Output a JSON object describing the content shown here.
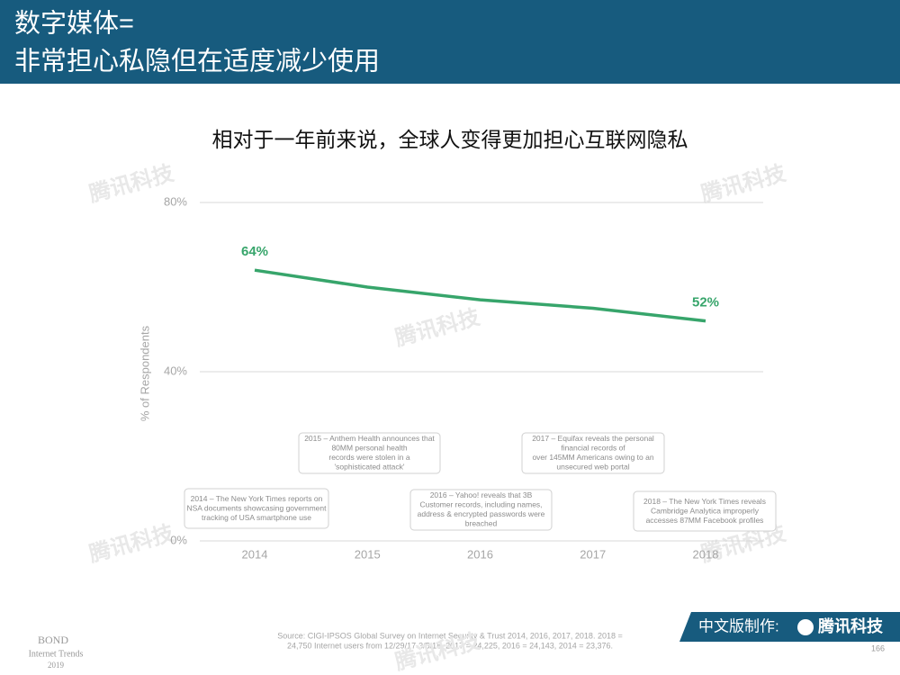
{
  "header": {
    "title_lines": [
      "数字媒体=",
      "非常担心私隐但在适度减少使用"
    ]
  },
  "chart_data": {
    "type": "line",
    "title": "相对于一年前来说，全球人变得更加担心互联网隐私",
    "y_label": "% of Respondents",
    "categories": [
      "2014",
      "2015",
      "2016",
      "2017",
      "2018"
    ],
    "series": [
      {
        "name": "% of Respondents",
        "color": "#37a56b",
        "values": [
          64,
          60,
          57,
          55,
          52
        ],
        "value_labels": [
          "64%",
          null,
          null,
          null,
          "52%"
        ]
      }
    ],
    "ylim": [
      0,
      80
    ],
    "yticks": [
      {
        "value": 0,
        "label": "0%"
      },
      {
        "value": 40,
        "label": "40%"
      },
      {
        "value": 80,
        "label": "80%"
      }
    ],
    "grid": true,
    "annotations": [
      [
        "2014 – The New York Times reports on",
        "NSA documents showcasing government",
        "tracking of USA smartphone use"
      ],
      [
        "2015 – Anthem Health announces that",
        "80MM personal health",
        "records were stolen in a",
        "'sophisticated attack'"
      ],
      [
        "2016 – Yahoo! reveals that 3B",
        "Customer records, including names,",
        "address & encrypted passwords were",
        "breached"
      ],
      [
        "2017 – Equifax reveals the personal",
        "financial records of",
        "over 145MM Americans owing to an",
        "unsecured web portal"
      ],
      [
        "2018 – The New York Times reveals",
        "Cambridge Analytica improperly",
        "accesses 87MM Facebook profiles"
      ]
    ]
  },
  "footer": {
    "brand": "BOND",
    "brand_sub": [
      "Internet Trends",
      "2019"
    ],
    "source_lines": [
      "Source: CIGI-IPSOS Global Survey on Internet Security & Trust 2014, 2016, 2017, 2018. 2018 =",
      "24,750 Internet users from 12/29/17-3/5/18. 2017 = 24,225, 2016 = 24,143, 2014 = 23,376."
    ],
    "credit": "中文版制作:",
    "logo": "腾讯科技",
    "page_number": "166"
  },
  "watermark": "腾讯科技"
}
